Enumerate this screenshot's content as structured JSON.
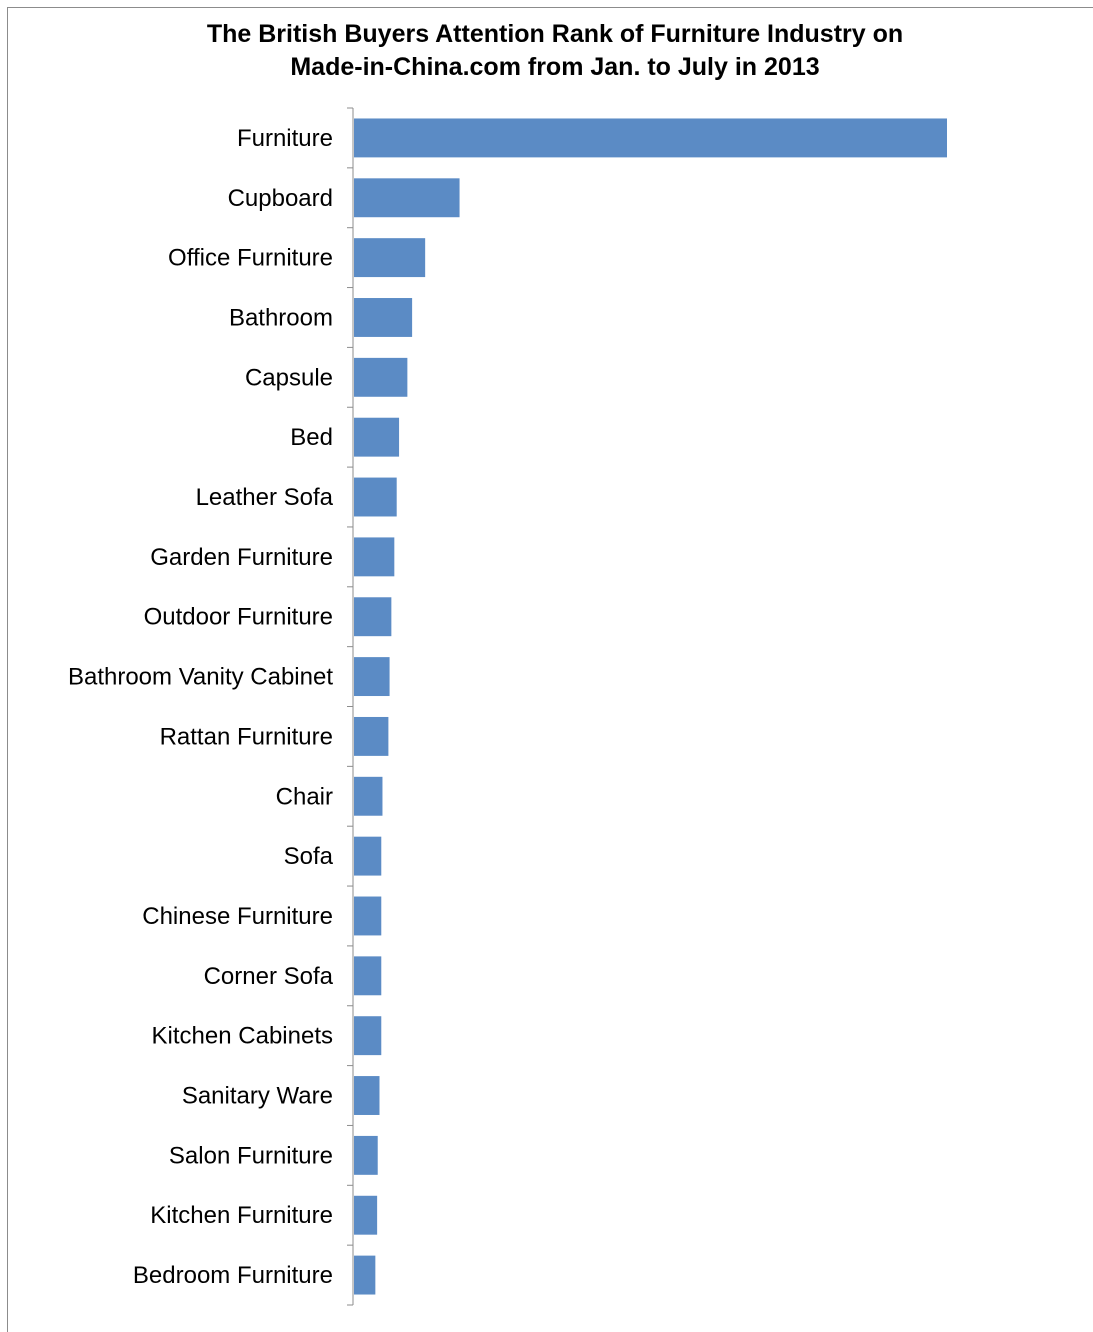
{
  "chart_data": {
    "type": "bar",
    "orientation": "horizontal",
    "title_line1": "The British Buyers Attention Rank of Furniture Industry on",
    "title_line2": "Made-in-China.com  from Jan. to July in 2013",
    "xlabel": "",
    "ylabel": "",
    "grid": false,
    "legend": "none",
    "color": "#5b8bc5",
    "categories": [
      "Furniture",
      "Cupboard",
      "Office Furniture",
      "Bathroom",
      "Capsule",
      "Bed",
      "Leather Sofa",
      "Garden Furniture",
      "Outdoor Furniture",
      "Bathroom Vanity Cabinet",
      "Rattan Furniture",
      "Chair",
      "Sofa",
      "Chinese Furniture",
      "Corner Sofa",
      "Kitchen Cabinets",
      "Sanitary Ware",
      "Salon Furniture",
      "Kitchen Furniture",
      "Bedroom Furniture"
    ],
    "values": [
      100,
      17.8,
      12,
      9.8,
      9,
      7.6,
      7.2,
      6.8,
      6.3,
      6,
      5.8,
      4.8,
      4.6,
      4.6,
      4.6,
      4.6,
      4.3,
      4,
      3.9,
      3.6
    ]
  }
}
